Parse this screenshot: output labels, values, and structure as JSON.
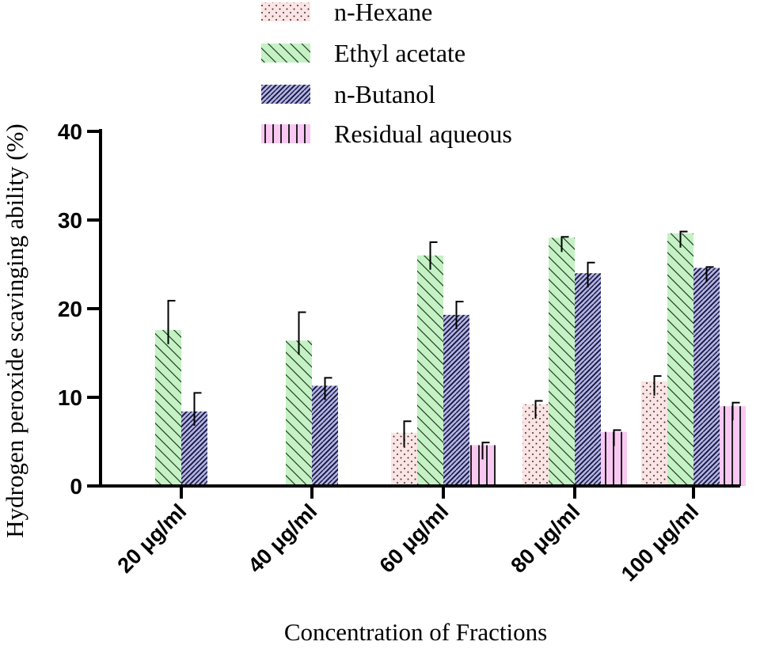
{
  "chart_data": {
    "type": "bar",
    "title": "",
    "xlabel": "Concentration of Fractions",
    "ylabel": "Hydrogen peroxide scavinging ability (%)",
    "ylim": [
      0,
      40
    ],
    "yticks": [
      0,
      10,
      20,
      30,
      40
    ],
    "categories": [
      "20 μg/ml",
      "40 μg/ml",
      "60 μg/ml",
      "80 μg/ml",
      "100 μg/ml"
    ],
    "legend_position": "top",
    "series": [
      {
        "name": "n-Hexane",
        "color": "#fde4e4",
        "pattern": "dots",
        "values": [
          0,
          0,
          6.0,
          9.2,
          11.8
        ],
        "errors": [
          0,
          0,
          1.3,
          0.4,
          0.6
        ]
      },
      {
        "name": "Ethyl acetate",
        "color": "#c4f2c4",
        "pattern": "diagonal",
        "values": [
          17.6,
          16.4,
          26.0,
          28.0,
          28.5
        ],
        "errors": [
          3.3,
          3.2,
          1.5,
          0.1,
          0.2
        ]
      },
      {
        "name": "n-Butanol",
        "color": "#b4b4ee",
        "pattern": "crosshatch",
        "values": [
          8.4,
          11.3,
          19.3,
          24.0,
          24.6
        ],
        "errors": [
          2.1,
          0.9,
          1.5,
          1.2,
          0.1
        ]
      },
      {
        "name": "Residual aqueous",
        "color": "#f9c8f2",
        "pattern": "vertical",
        "values": [
          0,
          0,
          4.6,
          6.1,
          9.0
        ],
        "errors": [
          0,
          0,
          0.3,
          0.2,
          0.4
        ]
      }
    ]
  }
}
